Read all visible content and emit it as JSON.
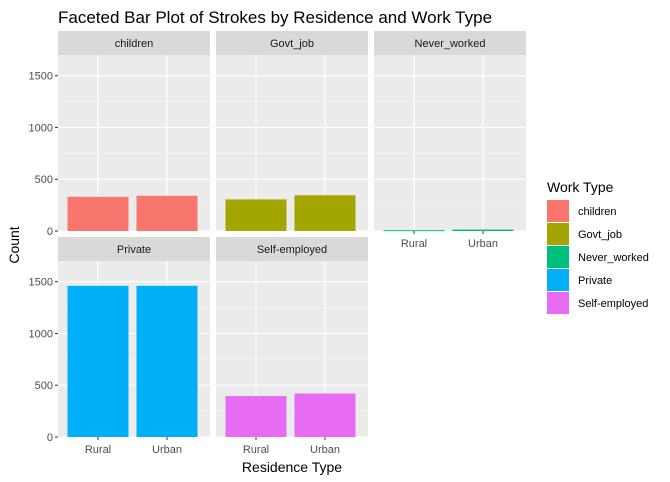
{
  "chart_data": {
    "type": "bar",
    "title": "Faceted Bar Plot of Strokes by Residence and Work Type",
    "xlabel": "Residence Type",
    "ylabel": "Count",
    "ylim": [
      0,
      1700
    ],
    "y_ticks": [
      0,
      500,
      1000,
      1500
    ],
    "grid": true,
    "facet_layout": "3 columns x 2 rows",
    "categories": [
      "Rural",
      "Urban"
    ],
    "legend": {
      "title": "Work Type",
      "placement": "right"
    },
    "series": [
      {
        "name": "children",
        "color": "#F8766D",
        "values": [
          330,
          340
        ]
      },
      {
        "name": "Govt_job",
        "color": "#A3A500",
        "values": [
          305,
          345
        ]
      },
      {
        "name": "Never_worked",
        "color": "#00BF7D",
        "values": [
          8,
          14
        ]
      },
      {
        "name": "Private",
        "color": "#00B0F6",
        "values": [
          1460,
          1460
        ]
      },
      {
        "name": "Self-employed",
        "color": "#E76BF3",
        "values": [
          395,
          420
        ]
      }
    ]
  }
}
